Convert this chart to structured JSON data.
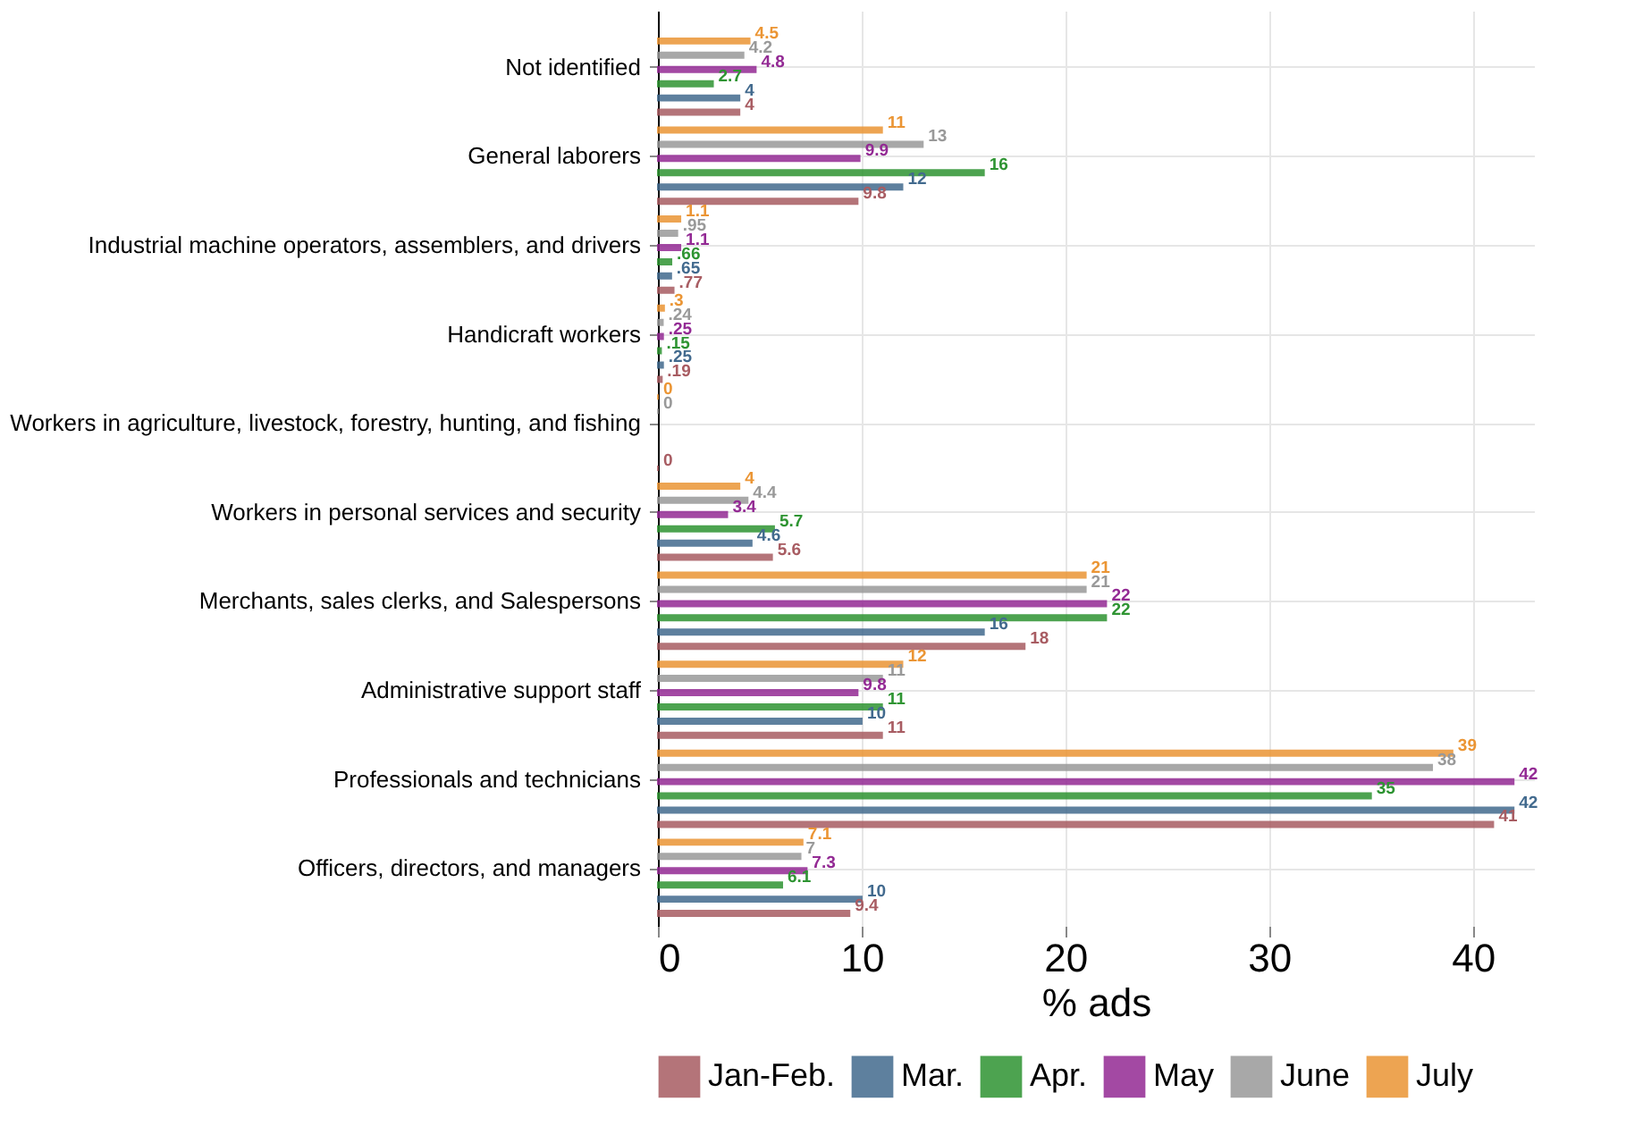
{
  "chart_data": {
    "type": "bar",
    "orientation": "horizontal",
    "xlabel": "% ads",
    "categories": [
      "Not identified",
      "General laborers",
      "Industrial machine operators, assemblers, and drivers",
      "Handicraft workers",
      "Workers in agriculture, livestock, forestry, hunting, and fishing",
      "Workers in personal services and security",
      "Merchants, sales clerks, and Salespersons",
      "Administrative support staff",
      "Professionals and technicians",
      "Officers, directors, and managers"
    ],
    "series": [
      {
        "name": "Jan-Feb.",
        "color": "#a85c62",
        "values": [
          4,
          9.8,
          0.77,
          0.19,
          0,
          5.6,
          18,
          11,
          41,
          9.4
        ],
        "value_labels": [
          "4",
          "9.8",
          ".77",
          ".19",
          "0",
          "5.6",
          "18",
          "11",
          "41",
          "9.4"
        ]
      },
      {
        "name": "Mar.",
        "color": "#426a8e",
        "values": [
          4,
          12,
          0.65,
          0.25,
          null,
          4.6,
          16,
          10,
          42,
          10
        ],
        "value_labels": [
          "4",
          "12",
          ".65",
          ".25",
          null,
          "4.6",
          "16",
          "10",
          "42",
          "10"
        ]
      },
      {
        "name": "Apr.",
        "color": "#2e9432",
        "values": [
          2.7,
          16,
          0.66,
          0.15,
          null,
          5.7,
          22,
          11,
          35,
          6.1
        ],
        "value_labels": [
          "2.7",
          "16",
          ".66",
          ".15",
          null,
          "5.7",
          "22",
          "11",
          "35",
          "6.1"
        ]
      },
      {
        "name": "May",
        "color": "#932a94",
        "values": [
          4.8,
          9.9,
          1.1,
          0.25,
          null,
          3.4,
          22,
          9.8,
          42,
          7.3
        ],
        "value_labels": [
          "4.8",
          "9.9",
          "1.1",
          ".25",
          null,
          "3.4",
          "22",
          "9.8",
          "42",
          "7.3"
        ]
      },
      {
        "name": "June",
        "color": "#999999",
        "values": [
          4.2,
          13,
          0.95,
          0.24,
          0,
          4.4,
          21,
          11,
          38,
          7
        ],
        "value_labels": [
          "4.2",
          "13",
          ".95",
          ".24",
          "0",
          "4.4",
          "21",
          "11",
          "38",
          "7"
        ]
      },
      {
        "name": "July",
        "color": "#eb9534",
        "values": [
          4.5,
          11,
          1.1,
          0.3,
          0,
          4,
          21,
          12,
          39,
          7.1
        ],
        "value_labels": [
          "4.5",
          "11",
          "1.1",
          ".3",
          "0",
          "4",
          "21",
          "12",
          "39",
          "7.1"
        ]
      }
    ],
    "xlim": [
      0,
      43
    ],
    "xticks": [
      0,
      10,
      20,
      30,
      40
    ],
    "grid": true,
    "legend": "bottom"
  }
}
